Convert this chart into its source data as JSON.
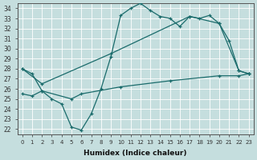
{
  "xlabel": "Humidex (Indice chaleur)",
  "xlim": [
    -0.5,
    23.5
  ],
  "ylim": [
    21.5,
    34.5
  ],
  "xticks": [
    0,
    1,
    2,
    3,
    4,
    5,
    6,
    7,
    8,
    9,
    10,
    11,
    12,
    13,
    14,
    15,
    16,
    17,
    18,
    19,
    20,
    21,
    22,
    23
  ],
  "yticks": [
    22,
    23,
    24,
    25,
    26,
    27,
    28,
    29,
    30,
    31,
    32,
    33,
    34
  ],
  "bg_color": "#c5dede",
  "line_color": "#1a6b6b",
  "curve1_x": [
    0,
    1,
    2,
    3,
    4,
    5,
    6,
    7,
    8,
    9,
    10,
    11,
    12,
    13,
    14,
    15,
    16,
    17,
    18,
    19,
    20,
    21,
    22,
    23
  ],
  "curve1_y": [
    28.0,
    27.5,
    25.8,
    25.0,
    24.5,
    22.2,
    21.9,
    23.5,
    26.0,
    29.2,
    33.3,
    34.0,
    34.5,
    33.8,
    33.2,
    33.0,
    32.2,
    33.2,
    33.0,
    33.3,
    32.5,
    30.8,
    27.8,
    27.5
  ],
  "curve2_x": [
    0,
    2,
    9,
    17,
    20,
    22,
    23
  ],
  "curve2_y": [
    28.0,
    26.5,
    29.5,
    33.2,
    32.5,
    27.8,
    27.5
  ],
  "curve3_x": [
    0,
    1,
    2,
    5,
    6,
    10,
    15,
    20,
    22,
    23
  ],
  "curve3_y": [
    25.5,
    25.3,
    25.8,
    25.0,
    25.5,
    26.2,
    26.8,
    27.3,
    27.3,
    27.5
  ]
}
